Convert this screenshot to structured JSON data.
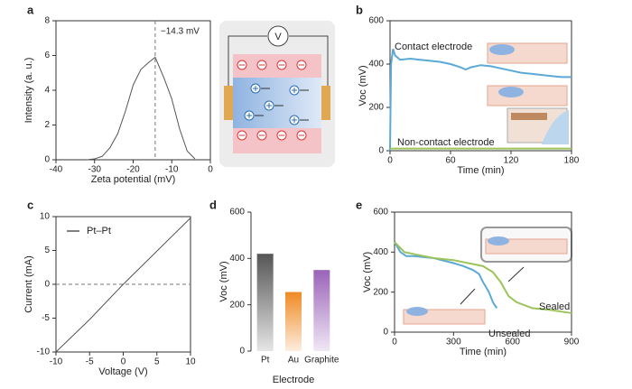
{
  "chart_data": [
    {
      "type": "line",
      "panel": "a",
      "x_label": "Zeta potential (mV)",
      "y_label": "Intensity (a. u.)",
      "xlim": [
        -40,
        0
      ],
      "xticks": [
        -40,
        -30,
        -20,
        -10,
        0
      ],
      "ylim": [
        0,
        8
      ],
      "yticks": [
        0,
        2,
        4,
        6,
        8
      ],
      "vline": {
        "value": -14.3,
        "label": "−14.3 mV"
      },
      "series": [
        {
          "color": "#555555",
          "x": [
            -32,
            -30,
            -28,
            -26,
            -24,
            -22,
            -20,
            -18,
            -16,
            -14.3,
            -12,
            -10,
            -8,
            -6,
            -4
          ],
          "values": [
            0,
            0.05,
            0.2,
            0.7,
            1.5,
            2.8,
            4.3,
            5.2,
            5.6,
            5.9,
            4.7,
            3.5,
            1.8,
            0.5,
            0.05
          ]
        }
      ]
    },
    {
      "type": "line",
      "panel": "b",
      "x_label": "Time (min)",
      "y_label": "Voc (mV)",
      "xlim": [
        0,
        180
      ],
      "xticks": [
        0,
        60,
        120,
        180
      ],
      "ylim": [
        0,
        600
      ],
      "yticks": [
        0,
        200,
        400,
        600
      ],
      "series": [
        {
          "name": "Contact electrode",
          "color": "#5aa9d6",
          "x": [
            0,
            1,
            3,
            5,
            10,
            20,
            30,
            40,
            50,
            60,
            70,
            75,
            80,
            90,
            100,
            110,
            120,
            130,
            140,
            150,
            160,
            170,
            180
          ],
          "values": [
            0,
            400,
            470,
            440,
            420,
            425,
            420,
            415,
            410,
            400,
            385,
            375,
            385,
            395,
            390,
            380,
            370,
            360,
            355,
            350,
            345,
            340,
            340
          ]
        },
        {
          "name": "Non-contact electrode",
          "color": "#9cc45a",
          "x": [
            0,
            60,
            120,
            180
          ],
          "values": [
            10,
            10,
            10,
            10
          ]
        }
      ]
    },
    {
      "type": "line",
      "panel": "c",
      "x_label": "Voltage (V)",
      "y_label": "Current (mA)",
      "xlim": [
        -10,
        10
      ],
      "xticks": [
        -10,
        -5,
        0,
        5,
        10
      ],
      "ylim": [
        -10,
        10
      ],
      "yticks": [
        -10,
        -5,
        0,
        5,
        10
      ],
      "hline": 0,
      "series": [
        {
          "name": "Pt–Pt",
          "color": "#555555",
          "x": [
            -10,
            -5,
            0,
            5,
            10
          ],
          "values": [
            -10,
            -5.2,
            0,
            4.9,
            9.8
          ]
        }
      ]
    },
    {
      "type": "bar",
      "panel": "d",
      "x_label": "Electrode",
      "y_label": "Voc (mV)",
      "ylim": [
        0,
        600
      ],
      "yticks": [
        0,
        200,
        400,
        600
      ],
      "categories": [
        "Pt",
        "Au",
        "Graphite"
      ],
      "values": [
        420,
        255,
        350
      ],
      "colors": [
        "#555555",
        "#f08a24",
        "#9a63b8"
      ]
    },
    {
      "type": "line",
      "panel": "e",
      "x_label": "Time (min)",
      "y_label": "Voc (mV)",
      "xlim": [
        0,
        900
      ],
      "xticks": [
        0,
        300,
        600,
        900
      ],
      "ylim": [
        0,
        600
      ],
      "yticks": [
        0,
        200,
        400,
        600
      ],
      "series": [
        {
          "name": "Unsealed",
          "color": "#5aa9d6",
          "x": [
            0,
            30,
            60,
            100,
            200,
            300,
            350,
            400,
            430,
            450,
            480,
            500,
            520
          ],
          "values": [
            450,
            400,
            380,
            380,
            370,
            345,
            330,
            310,
            290,
            250,
            200,
            150,
            120
          ]
        },
        {
          "name": "Sealed",
          "color": "#9cc45a",
          "x": [
            0,
            50,
            100,
            200,
            300,
            400,
            450,
            500,
            540,
            580,
            620,
            700,
            800,
            900
          ],
          "values": [
            450,
            400,
            390,
            370,
            360,
            340,
            330,
            300,
            250,
            180,
            150,
            120,
            110,
            95
          ]
        }
      ]
    }
  ],
  "schematic": {
    "meter": "V"
  }
}
